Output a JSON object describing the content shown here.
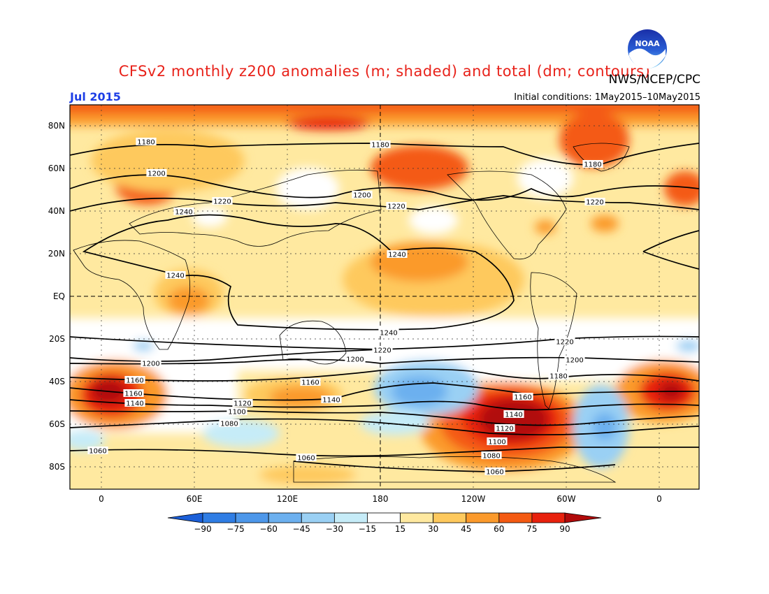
{
  "header": {
    "title": "CFSv2 monthly z200 anomalies (m; shaded) and total (dm; contours)",
    "agency": "NWS/NCEP/CPC",
    "month": "Jul 2015",
    "initial_conditions": "Initial conditions: 1May2015–10May2015",
    "logo_text": "NOAA"
  },
  "map": {
    "lat_ticks": [
      "80N",
      "60N",
      "40N",
      "20N",
      "EQ",
      "20S",
      "40S",
      "60S",
      "80S"
    ],
    "lon_ticks": [
      "0",
      "60E",
      "120E",
      "180",
      "120W",
      "60W",
      "0"
    ],
    "contour_labels": [
      "1180",
      "1180",
      "1180",
      "1200",
      "1200",
      "1220",
      "1220",
      "1220",
      "1240",
      "1240",
      "1240",
      "1240",
      "1220",
      "1220",
      "1200",
      "1200",
      "1200",
      "1180",
      "1160",
      "1160",
      "1160",
      "1140",
      "1140",
      "1120",
      "1100",
      "1080",
      "1160",
      "1140",
      "1120",
      "1100",
      "1080",
      "1060",
      "1060",
      "1060"
    ]
  },
  "legend": {
    "labels": [
      "-90",
      "-75",
      "-60",
      "-45",
      "-30",
      "-15",
      "15",
      "30",
      "45",
      "60",
      "75",
      "90"
    ],
    "colors": [
      "#1b5fd8",
      "#2f7de4",
      "#4d97ea",
      "#6cb0ef",
      "#9ad0f4",
      "#c6ecf8",
      "#ffffff",
      "#ffe9a0",
      "#fec95d",
      "#fb9a2c",
      "#f45a12",
      "#e8210d",
      "#b10a0a"
    ]
  }
}
